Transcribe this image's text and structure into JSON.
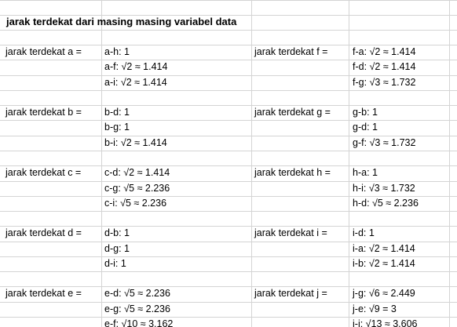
{
  "title": "jarak terdekat dari masing masing variabel data",
  "groups": [
    {
      "left_label": "jarak terdekat a =",
      "left_values": [
        "a-h: 1",
        "a-f: √2 ≈ 1.414",
        "a-i: √2 ≈ 1.414"
      ],
      "right_label": "jarak terdekat f =",
      "right_values": [
        "f-a: √2 ≈ 1.414",
        "f-d: √2 ≈ 1.414",
        "f-g: √3 ≈ 1.732"
      ]
    },
    {
      "left_label": "jarak terdekat b =",
      "left_values": [
        "b-d: 1",
        "b-g: 1",
        "b-i: √2 ≈ 1.414"
      ],
      "right_label": "jarak terdekat g =",
      "right_values": [
        "g-b: 1",
        "g-d: 1",
        "g-f: √3 ≈ 1.732"
      ]
    },
    {
      "left_label": "jarak terdekat c =",
      "left_values": [
        "c-d: √2 ≈ 1.414",
        "c-g: √5 ≈ 2.236",
        "c-i: √5 ≈ 2.236"
      ],
      "right_label": "jarak terdekat h =",
      "right_values": [
        "h-a: 1",
        "h-i: √3 ≈ 1.732",
        "h-d: √5 ≈ 2.236"
      ]
    },
    {
      "left_label": "jarak terdekat d =",
      "left_values": [
        "d-b: 1",
        "d-g: 1",
        "d-i: 1"
      ],
      "right_label": "jarak terdekat i =",
      "right_values": [
        "i-d: 1",
        "i-a: √2 ≈ 1.414",
        "i-b: √2 ≈ 1.414"
      ]
    },
    {
      "left_label": "jarak terdekat e =",
      "left_values": [
        "e-d: √5 ≈ 2.236",
        "e-g: √5 ≈ 2.236",
        "e-f: √10 ≈ 3.162"
      ],
      "right_label": "jarak terdekat j =",
      "right_values": [
        "j-g: √6 ≈ 2.449",
        "j-e: √9 = 3",
        "j-i: √13 ≈ 3.606"
      ]
    }
  ]
}
